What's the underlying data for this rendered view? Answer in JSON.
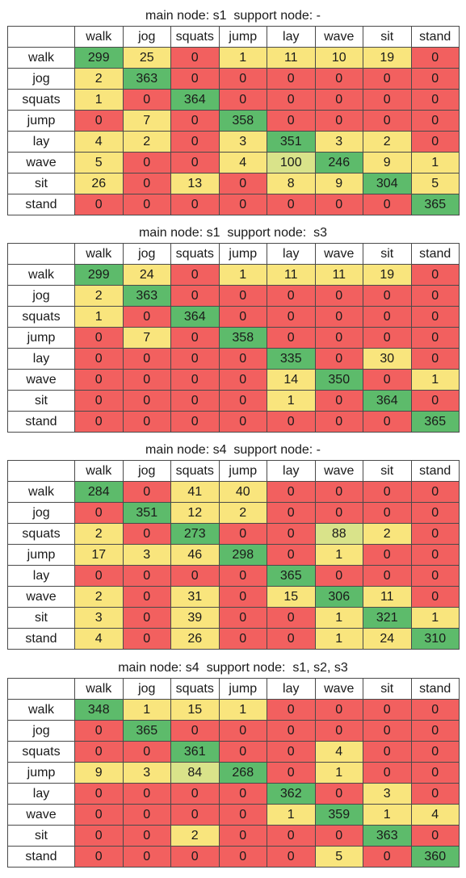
{
  "palette": {
    "red": "#f2605f",
    "yellow": "#f9e57d",
    "light_green": "#d9e38a",
    "green": "#5dbb6b"
  },
  "chart_data": [
    {
      "type": "table",
      "title": "main node: s1  support node: -",
      "columns": [
        "walk",
        "jog",
        "squats",
        "jump",
        "lay",
        "wave",
        "sit",
        "stand"
      ],
      "rows": [
        "walk",
        "jog",
        "squats",
        "jump",
        "lay",
        "wave",
        "sit",
        "stand"
      ],
      "values": [
        [
          299,
          25,
          0,
          1,
          11,
          10,
          19,
          0
        ],
        [
          2,
          363,
          0,
          0,
          0,
          0,
          0,
          0
        ],
        [
          1,
          0,
          364,
          0,
          0,
          0,
          0,
          0
        ],
        [
          0,
          7,
          0,
          358,
          0,
          0,
          0,
          0
        ],
        [
          4,
          2,
          0,
          3,
          351,
          3,
          2,
          0
        ],
        [
          5,
          0,
          0,
          4,
          100,
          246,
          9,
          1
        ],
        [
          26,
          0,
          13,
          0,
          8,
          9,
          304,
          5
        ],
        [
          0,
          0,
          0,
          0,
          0,
          0,
          0,
          365
        ]
      ]
    },
    {
      "type": "table",
      "title": "main node: s1  support node:  s3",
      "columns": [
        "walk",
        "jog",
        "squats",
        "jump",
        "lay",
        "wave",
        "sit",
        "stand"
      ],
      "rows": [
        "walk",
        "jog",
        "squats",
        "jump",
        "lay",
        "wave",
        "sit",
        "stand"
      ],
      "values": [
        [
          299,
          24,
          0,
          1,
          11,
          11,
          19,
          0
        ],
        [
          2,
          363,
          0,
          0,
          0,
          0,
          0,
          0
        ],
        [
          1,
          0,
          364,
          0,
          0,
          0,
          0,
          0
        ],
        [
          0,
          7,
          0,
          358,
          0,
          0,
          0,
          0
        ],
        [
          0,
          0,
          0,
          0,
          335,
          0,
          30,
          0
        ],
        [
          0,
          0,
          0,
          0,
          14,
          350,
          0,
          1
        ],
        [
          0,
          0,
          0,
          0,
          1,
          0,
          364,
          0
        ],
        [
          0,
          0,
          0,
          0,
          0,
          0,
          0,
          365
        ]
      ]
    },
    {
      "type": "table",
      "title": "main node: s4  support node: -",
      "columns": [
        "walk",
        "jog",
        "squats",
        "jump",
        "lay",
        "wave",
        "sit",
        "stand"
      ],
      "rows": [
        "walk",
        "jog",
        "squats",
        "jump",
        "lay",
        "wave",
        "sit",
        "stand"
      ],
      "values": [
        [
          284,
          0,
          41,
          40,
          0,
          0,
          0,
          0
        ],
        [
          0,
          351,
          12,
          2,
          0,
          0,
          0,
          0
        ],
        [
          2,
          0,
          273,
          0,
          0,
          88,
          2,
          0
        ],
        [
          17,
          3,
          46,
          298,
          0,
          1,
          0,
          0
        ],
        [
          0,
          0,
          0,
          0,
          365,
          0,
          0,
          0
        ],
        [
          2,
          0,
          31,
          0,
          15,
          306,
          11,
          0
        ],
        [
          3,
          0,
          39,
          0,
          0,
          1,
          321,
          1
        ],
        [
          4,
          0,
          26,
          0,
          0,
          1,
          24,
          310
        ]
      ]
    },
    {
      "type": "table",
      "title": "main node: s4  support node:  s1, s2, s3",
      "columns": [
        "walk",
        "jog",
        "squats",
        "jump",
        "lay",
        "wave",
        "sit",
        "stand"
      ],
      "rows": [
        "walk",
        "jog",
        "squats",
        "jump",
        "lay",
        "wave",
        "sit",
        "stand"
      ],
      "values": [
        [
          348,
          1,
          15,
          1,
          0,
          0,
          0,
          0
        ],
        [
          0,
          365,
          0,
          0,
          0,
          0,
          0,
          0
        ],
        [
          0,
          0,
          361,
          0,
          0,
          4,
          0,
          0
        ],
        [
          9,
          3,
          84,
          268,
          0,
          1,
          0,
          0
        ],
        [
          0,
          0,
          0,
          0,
          362,
          0,
          3,
          0
        ],
        [
          0,
          0,
          0,
          0,
          1,
          359,
          1,
          4
        ],
        [
          0,
          0,
          2,
          0,
          0,
          0,
          363,
          0
        ],
        [
          0,
          0,
          0,
          0,
          0,
          5,
          0,
          360
        ]
      ]
    }
  ]
}
